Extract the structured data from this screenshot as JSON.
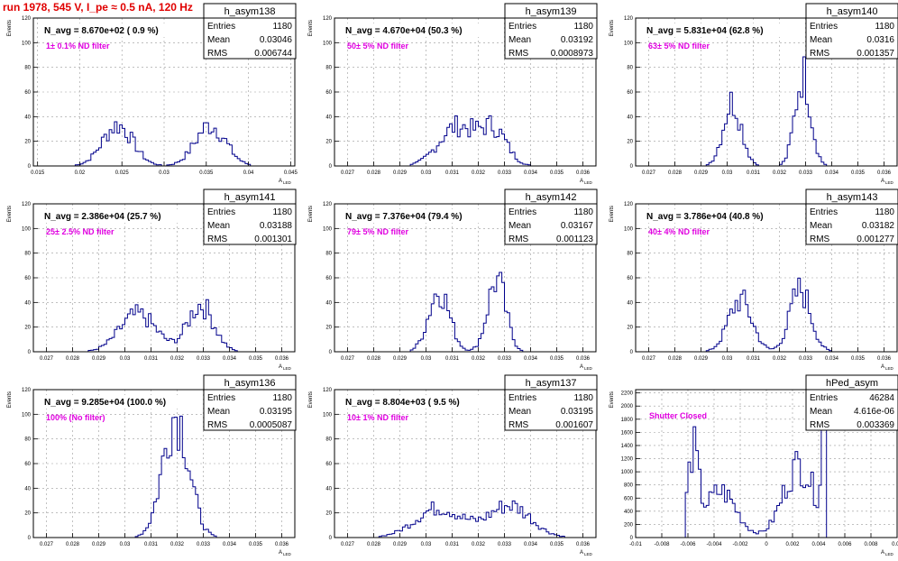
{
  "page_title": "run 1978,   545 V, I_pe ≈ 0.5 nA, 120 Hz",
  "stats_labels": {
    "entries": "Entries",
    "mean": "Mean",
    "rms": "RMS"
  },
  "ylabel": "Events",
  "xlabel_main": "A",
  "xlabel_sub": "LED",
  "colors": {
    "hist": "#00008b",
    "title": "#e00000",
    "annotation": "#e000e0",
    "frame": "#000000",
    "grid": "#9a9a9a"
  },
  "chart_data": [
    {
      "type": "bar",
      "name": "h_asym138",
      "title": "N_avg = 8.670e+02 ( 0.9 %)",
      "annotation": "1± 0.1% ND filter",
      "entries": "1180",
      "mean": "0.03046",
      "rms": "0.006744",
      "xlim": [
        0.0145,
        0.0455
      ],
      "ylim": [
        0,
        120
      ],
      "xticks": [
        0.015,
        0.02,
        0.025,
        0.03,
        0.035,
        0.04,
        0.045
      ],
      "xticklabels": [
        "0.015",
        "0.02",
        "0.025",
        "0.03",
        "0.035",
        "0.04",
        "0.045"
      ],
      "yticks": [
        0,
        20,
        40,
        60,
        80,
        100,
        120
      ],
      "yticklabels": [
        "0",
        "20",
        "40",
        "60",
        "80",
        "100",
        "120"
      ],
      "bins": {
        "lo": 0.0145,
        "hi": 0.0455,
        "n": 100
      },
      "shape": [
        {
          "m": 0.0245,
          "s": 0.0018,
          "a": 33
        },
        {
          "m": 0.0355,
          "s": 0.0018,
          "a": 33
        }
      ]
    },
    {
      "type": "bar",
      "name": "h_asym139",
      "title": "N_avg = 4.670e+04 (50.3 %)",
      "annotation": "50± 5% ND filter",
      "entries": "1180",
      "mean": "0.03192",
      "rms": "0.0008973",
      "xlim": [
        0.0265,
        0.0365
      ],
      "ylim": [
        0,
        120
      ],
      "xticks": [
        0.027,
        0.028,
        0.029,
        0.03,
        0.031,
        0.032,
        0.033,
        0.034,
        0.035,
        0.036
      ],
      "xticklabels": [
        "0.027",
        "0.028",
        "0.029",
        "0.03",
        "0.031",
        "0.032",
        "0.033",
        "0.034",
        "0.035",
        "0.036"
      ],
      "yticks": [
        0,
        20,
        40,
        60,
        80,
        100,
        120
      ],
      "yticklabels": [
        "0",
        "20",
        "40",
        "60",
        "80",
        "100",
        "120"
      ],
      "bins": {
        "lo": 0.0265,
        "hi": 0.0365,
        "n": 100
      },
      "shape": [
        {
          "m": 0.0312,
          "s": 0.0007,
          "a": 32
        },
        {
          "m": 0.0326,
          "s": 0.0005,
          "a": 28
        }
      ]
    },
    {
      "type": "bar",
      "name": "h_asym140",
      "title": "N_avg = 5.831e+04 (62.8 %)",
      "annotation": "63± 5% ND filter",
      "entries": "1180",
      "mean": "0.0316",
      "rms": "0.001357",
      "xlim": [
        0.0265,
        0.0365
      ],
      "ylim": [
        0,
        120
      ],
      "xticks": [
        0.027,
        0.028,
        0.029,
        0.03,
        0.031,
        0.032,
        0.033,
        0.034,
        0.035,
        0.036
      ],
      "xticklabels": [
        "0.027",
        "0.028",
        "0.029",
        "0.03",
        "0.031",
        "0.032",
        "0.033",
        "0.034",
        "0.035",
        "0.036"
      ],
      "yticks": [
        0,
        20,
        40,
        60,
        80,
        100,
        120
      ],
      "yticklabels": [
        "0",
        "20",
        "40",
        "60",
        "80",
        "100",
        "120"
      ],
      "bins": {
        "lo": 0.0265,
        "hi": 0.0365,
        "n": 100
      },
      "shape": [
        {
          "m": 0.0302,
          "s": 0.00035,
          "a": 52
        },
        {
          "m": 0.0329,
          "s": 0.0003,
          "a": 74
        }
      ]
    },
    {
      "type": "bar",
      "name": "h_asym141",
      "title": "N_avg = 2.386e+04 (25.7 %)",
      "annotation": "25± 2.5% ND filter",
      "entries": "1180",
      "mean": "0.03188",
      "rms": "0.001301",
      "xlim": [
        0.0265,
        0.0365
      ],
      "ylim": [
        0,
        120
      ],
      "xticks": [
        0.027,
        0.028,
        0.029,
        0.03,
        0.031,
        0.032,
        0.033,
        0.034,
        0.035,
        0.036
      ],
      "xticklabels": [
        "0.027",
        "0.028",
        "0.029",
        "0.03",
        "0.031",
        "0.032",
        "0.033",
        "0.034",
        "0.035",
        "0.036"
      ],
      "yticks": [
        0,
        20,
        40,
        60,
        80,
        100,
        120
      ],
      "yticklabels": [
        "0",
        "20",
        "40",
        "60",
        "80",
        "100",
        "120"
      ],
      "bins": {
        "lo": 0.0265,
        "hi": 0.0365,
        "n": 100
      },
      "shape": [
        {
          "m": 0.0305,
          "s": 0.0007,
          "a": 30
        },
        {
          "m": 0.0329,
          "s": 0.0005,
          "a": 38
        }
      ]
    },
    {
      "type": "bar",
      "name": "h_asym142",
      "title": "N_avg = 7.376e+04 (79.4 %)",
      "annotation": "79± 5% ND filter",
      "entries": "1180",
      "mean": "0.03167",
      "rms": "0.001123",
      "xlim": [
        0.0265,
        0.0365
      ],
      "ylim": [
        0,
        120
      ],
      "xticks": [
        0.027,
        0.028,
        0.029,
        0.03,
        0.031,
        0.032,
        0.033,
        0.034,
        0.035,
        0.036
      ],
      "xticklabels": [
        "0.027",
        "0.028",
        "0.029",
        "0.03",
        "0.031",
        "0.032",
        "0.033",
        "0.034",
        "0.035",
        "0.036"
      ],
      "yticks": [
        0,
        20,
        40,
        60,
        80,
        100,
        120
      ],
      "yticklabels": [
        "0",
        "20",
        "40",
        "60",
        "80",
        "100",
        "120"
      ],
      "bins": {
        "lo": 0.0265,
        "hi": 0.0365,
        "n": 100
      },
      "shape": [
        {
          "m": 0.0305,
          "s": 0.0004,
          "a": 50
        },
        {
          "m": 0.0327,
          "s": 0.00035,
          "a": 58
        }
      ]
    },
    {
      "type": "bar",
      "name": "h_asym143",
      "title": "N_avg = 3.786e+04 (40.8 %)",
      "annotation": "40± 4% ND filter",
      "entries": "1180",
      "mean": "0.03182",
      "rms": "0.001277",
      "xlim": [
        0.0265,
        0.0365
      ],
      "ylim": [
        0,
        120
      ],
      "xticks": [
        0.027,
        0.028,
        0.029,
        0.03,
        0.031,
        0.032,
        0.033,
        0.034,
        0.035,
        0.036
      ],
      "xticklabels": [
        "0.027",
        "0.028",
        "0.029",
        "0.03",
        "0.031",
        "0.032",
        "0.033",
        "0.034",
        "0.035",
        "0.036"
      ],
      "yticks": [
        0,
        20,
        40,
        60,
        80,
        100,
        120
      ],
      "yticklabels": [
        "0",
        "20",
        "40",
        "60",
        "80",
        "100",
        "120"
      ],
      "bins": {
        "lo": 0.0265,
        "hi": 0.0365,
        "n": 100
      },
      "shape": [
        {
          "m": 0.0305,
          "s": 0.00045,
          "a": 42
        },
        {
          "m": 0.0328,
          "s": 0.0004,
          "a": 50
        }
      ]
    },
    {
      "type": "bar",
      "name": "h_asym136",
      "title": "N_avg = 9.285e+04 (100.0 %)",
      "annotation": "100% (No filter)",
      "entries": "1180",
      "mean": "0.03195",
      "rms": "0.0005087",
      "xlim": [
        0.0265,
        0.0365
      ],
      "ylim": [
        0,
        120
      ],
      "xticks": [
        0.027,
        0.028,
        0.029,
        0.03,
        0.031,
        0.032,
        0.033,
        0.034,
        0.035,
        0.036
      ],
      "xticklabels": [
        "0.027",
        "0.028",
        "0.029",
        "0.03",
        "0.031",
        "0.032",
        "0.033",
        "0.034",
        "0.035",
        "0.036"
      ],
      "yticks": [
        0,
        20,
        40,
        60,
        80,
        100,
        120
      ],
      "yticklabels": [
        "0",
        "20",
        "40",
        "60",
        "80",
        "100",
        "120"
      ],
      "bins": {
        "lo": 0.0265,
        "hi": 0.0365,
        "n": 100
      },
      "shape": [
        {
          "m": 0.03195,
          "s": 0.0005,
          "a": 100
        }
      ]
    },
    {
      "type": "bar",
      "name": "h_asym137",
      "title": "N_avg = 8.804e+03 ( 9.5 %)",
      "annotation": "10± 1% ND filter",
      "entries": "1180",
      "mean": "0.03195",
      "rms": "0.001607",
      "xlim": [
        0.0265,
        0.0365
      ],
      "ylim": [
        0,
        120
      ],
      "xticks": [
        0.027,
        0.028,
        0.029,
        0.03,
        0.031,
        0.032,
        0.033,
        0.034,
        0.035,
        0.036
      ],
      "xticklabels": [
        "0.027",
        "0.028",
        "0.029",
        "0.03",
        "0.031",
        "0.032",
        "0.033",
        "0.034",
        "0.035",
        "0.036"
      ],
      "yticks": [
        0,
        20,
        40,
        60,
        80,
        100,
        120
      ],
      "yticklabels": [
        "0",
        "20",
        "40",
        "60",
        "80",
        "100",
        "120"
      ],
      "bins": {
        "lo": 0.0265,
        "hi": 0.0365,
        "n": 100
      },
      "shape": [
        {
          "m": 0.0305,
          "s": 0.0009,
          "a": 24
        },
        {
          "m": 0.0332,
          "s": 0.0008,
          "a": 26
        }
      ]
    },
    {
      "type": "bar",
      "name": "hPed_asym",
      "title": "",
      "annotation": "Shutter Closed",
      "entries": "46284",
      "mean": "4.616e-06",
      "rms": "0.003369",
      "xlim": [
        -0.01,
        0.01
      ],
      "ylim": [
        0,
        2250
      ],
      "xticks": [
        -0.01,
        -0.008,
        -0.006,
        -0.004,
        -0.002,
        0,
        0.002,
        0.004,
        0.006,
        0.008,
        0.01
      ],
      "xticklabels": [
        "-0.01",
        "-0.008",
        "-0.006",
        "-0.004",
        "-0.002",
        "0",
        "0.002",
        "0.004",
        "0.006",
        "0.008",
        "0.01"
      ],
      "yticks": [
        0,
        200,
        400,
        600,
        800,
        1000,
        1200,
        1400,
        1600,
        1800,
        2000,
        2200
      ],
      "yticklabels": [
        "0",
        "200",
        "400",
        "600",
        "800",
        "1000",
        "1200",
        "1400",
        "1600",
        "1800",
        "2000",
        "2200"
      ],
      "bins": {
        "lo": -0.01,
        "hi": 0.01,
        "n": 100
      },
      "shape": [
        {
          "m": -0.0056,
          "s": 0.0004,
          "a": 1200
        },
        {
          "m": -0.0035,
          "s": 0.0012,
          "a": 700
        },
        {
          "m": 0.0025,
          "s": 0.0012,
          "a": 1100
        },
        {
          "m": 0.0044,
          "s": 0.0002,
          "a": 1500
        }
      ],
      "range": [
        -0.0062,
        0.0046
      ]
    }
  ]
}
